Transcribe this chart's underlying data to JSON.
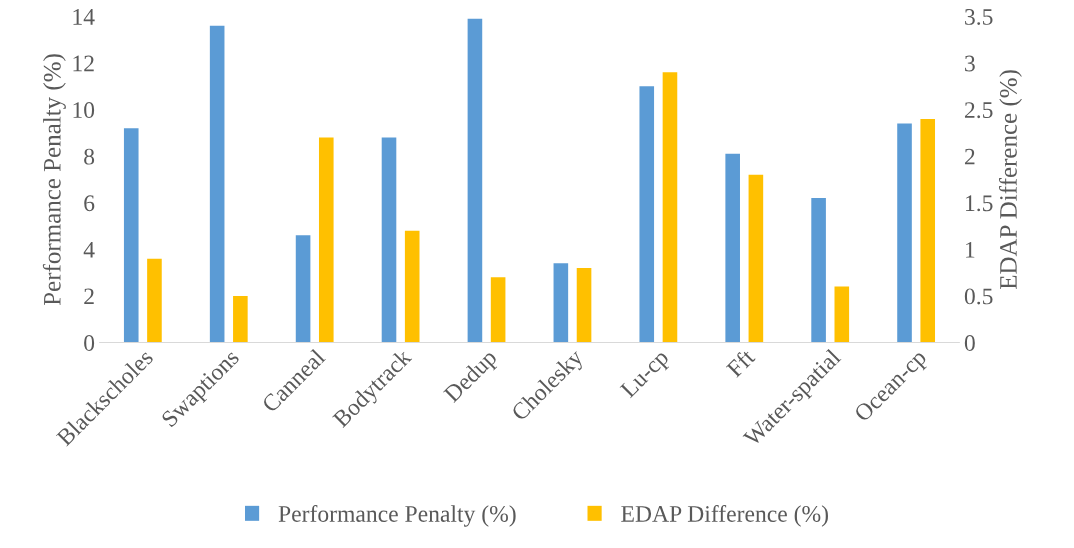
{
  "chart_data": {
    "type": "bar",
    "ylabel": "Performance Penalty (%)",
    "y2label": "EDAP Difference (%)",
    "categories": [
      "Blackscholes",
      "Swaptions",
      "Canneal",
      "Bodytrack",
      "Dedup",
      "Cholesky",
      "Lu-cp",
      "Fft",
      "Water-spatial",
      "Ocean-cp"
    ],
    "series": [
      {
        "name": "Performance Penalty (%)",
        "color": "#5b9bd5",
        "values": [
          9.2,
          13.6,
          4.6,
          8.8,
          13.9,
          3.4,
          11.0,
          8.1,
          6.2,
          9.4
        ]
      },
      {
        "name": "EDAP Difference (%)",
        "color": "#ffc000",
        "axis": "y2",
        "values": [
          0.9,
          0.5,
          2.2,
          1.2,
          0.7,
          0.8,
          2.9,
          1.8,
          0.6,
          2.4
        ]
      }
    ],
    "ylim": [
      0,
      14
    ],
    "yticks": [
      0,
      2,
      4,
      6,
      8,
      10,
      12,
      14
    ],
    "y2lim": [
      0,
      3.5
    ],
    "y2ticks": [
      0,
      0.5,
      1,
      1.5,
      2,
      2.5,
      3,
      3.5
    ],
    "grid": false,
    "legend": "bottom"
  }
}
